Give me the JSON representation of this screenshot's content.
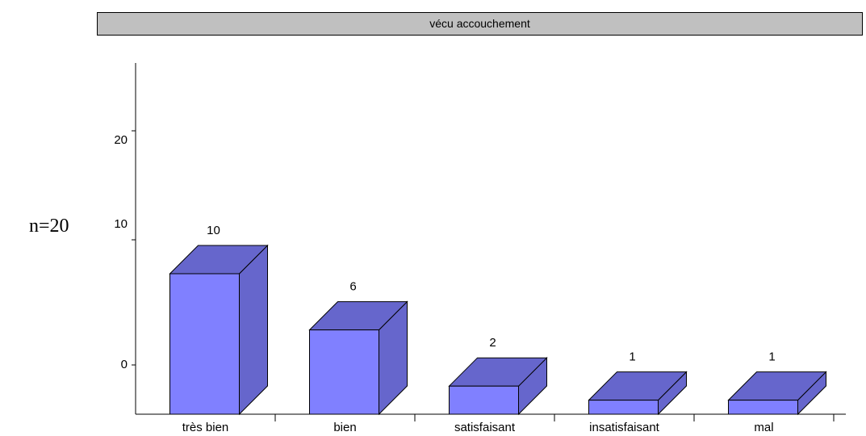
{
  "title": "vécu accouchement",
  "n_label": "n=20",
  "chart_data": {
    "type": "bar",
    "style": "3d",
    "title": "vécu accouchement",
    "categories": [
      "très bien",
      "bien",
      "satisfaisant",
      "insatisfaisant",
      "mal"
    ],
    "values": [
      10,
      6,
      2,
      1,
      1
    ],
    "data_labels": [
      "10",
      "6",
      "2",
      "1",
      "1"
    ],
    "y_ticks": [
      "0",
      "10",
      "20"
    ],
    "grid": false,
    "colors": {
      "front": "#8080ff",
      "top": "#6666cc",
      "side": "#6666cc"
    }
  }
}
